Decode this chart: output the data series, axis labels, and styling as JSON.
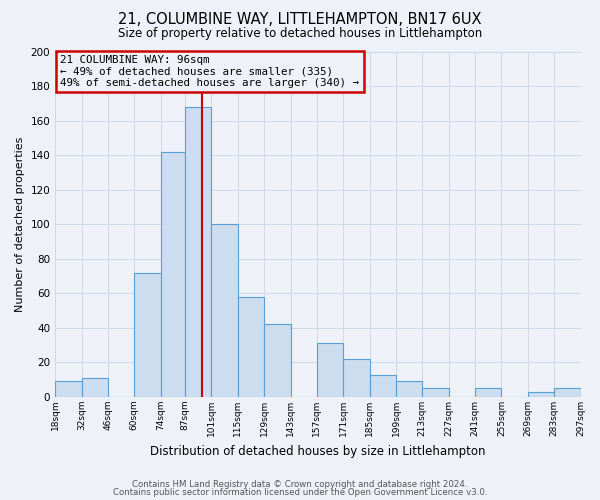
{
  "title": "21, COLUMBINE WAY, LITTLEHAMPTON, BN17 6UX",
  "subtitle": "Size of property relative to detached houses in Littlehampton",
  "xlabel": "Distribution of detached houses by size in Littlehampton",
  "ylabel": "Number of detached properties",
  "footer1": "Contains HM Land Registry data © Crown copyright and database right 2024.",
  "footer2": "Contains public sector information licensed under the Open Government Licence v3.0.",
  "annotation_title": "21 COLUMBINE WAY: 96sqm",
  "annotation_line1": "← 49% of detached houses are smaller (335)",
  "annotation_line2": "49% of semi-detached houses are larger (340) →",
  "bin_edges": [
    18,
    32,
    46,
    60,
    74,
    87,
    101,
    115,
    129,
    143,
    157,
    171,
    185,
    199,
    213,
    227,
    241,
    255,
    269,
    283,
    297
  ],
  "bar_heights": [
    9,
    11,
    0,
    72,
    142,
    168,
    100,
    58,
    42,
    0,
    31,
    22,
    13,
    9,
    5,
    0,
    5,
    0,
    3,
    5
  ],
  "x_tick_labels": [
    "18sqm",
    "32sqm",
    "46sqm",
    "60sqm",
    "74sqm",
    "87sqm",
    "101sqm",
    "115sqm",
    "129sqm",
    "143sqm",
    "157sqm",
    "171sqm",
    "185sqm",
    "199sqm",
    "213sqm",
    "227sqm",
    "241sqm",
    "255sqm",
    "269sqm",
    "283sqm",
    "297sqm"
  ],
  "x_tick_positions": [
    18,
    32,
    46,
    60,
    74,
    87,
    101,
    115,
    129,
    143,
    157,
    171,
    185,
    199,
    213,
    227,
    241,
    255,
    269,
    283,
    297
  ],
  "ylim": [
    0,
    200
  ],
  "yticks": [
    0,
    20,
    40,
    60,
    80,
    100,
    120,
    140,
    160,
    180,
    200
  ],
  "bar_fill_color": "#ccddf0",
  "bar_edge_color": "#5a9fd4",
  "property_line_x": 96,
  "property_line_color": "#cc0000",
  "annotation_box_edge_color": "#cc0000",
  "grid_color": "#d0d8e8",
  "background_color": "#eef2f8"
}
